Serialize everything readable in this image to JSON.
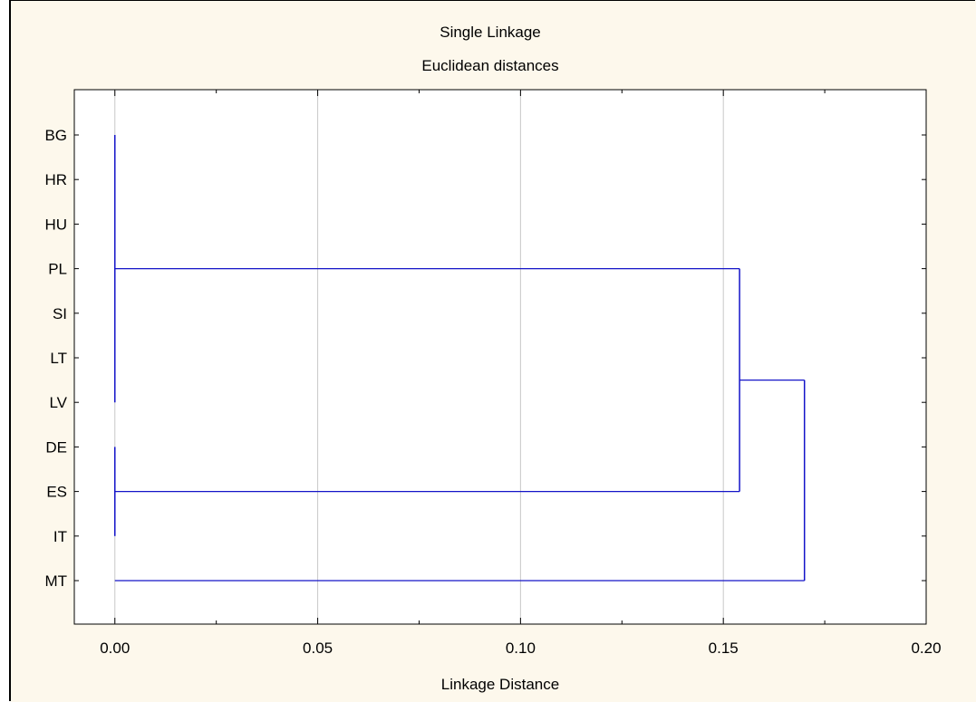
{
  "colors": {
    "background": "#fdf8ec",
    "plot_area": "#ffffff",
    "tree_line": "#1414c8",
    "grid": "#c8c8c8"
  },
  "chart_data": {
    "type": "dendrogram",
    "title": "Single Linkage",
    "subtitle": "Euclidean distances",
    "xlabel": "Linkage Distance",
    "xlim": [
      -0.01,
      0.2
    ],
    "x_ticks": [
      "0.00",
      "0.05",
      "0.10",
      "0.15",
      "0.20"
    ],
    "x_tick_values": [
      0.0,
      0.05,
      0.1,
      0.15,
      0.2
    ],
    "vertical_grid": true,
    "leaves": [
      "BG",
      "HR",
      "HU",
      "PL",
      "SI",
      "LT",
      "LV",
      "DE",
      "ES",
      "IT",
      "MT"
    ],
    "merges": [
      {
        "members": [
          "BG",
          "HR",
          "HU",
          "PL",
          "SI",
          "LT",
          "LV"
        ],
        "distance": 0.0
      },
      {
        "members": [
          "DE",
          "ES",
          "IT"
        ],
        "distance": 0.0
      },
      {
        "members": [
          "BG",
          "HR",
          "HU",
          "PL",
          "SI",
          "LT",
          "LV",
          "DE",
          "ES",
          "IT"
        ],
        "distance": 0.154
      },
      {
        "members": [
          "BG",
          "HR",
          "HU",
          "PL",
          "SI",
          "LT",
          "LV",
          "DE",
          "ES",
          "IT",
          "MT"
        ],
        "distance": 0.17
      }
    ]
  }
}
